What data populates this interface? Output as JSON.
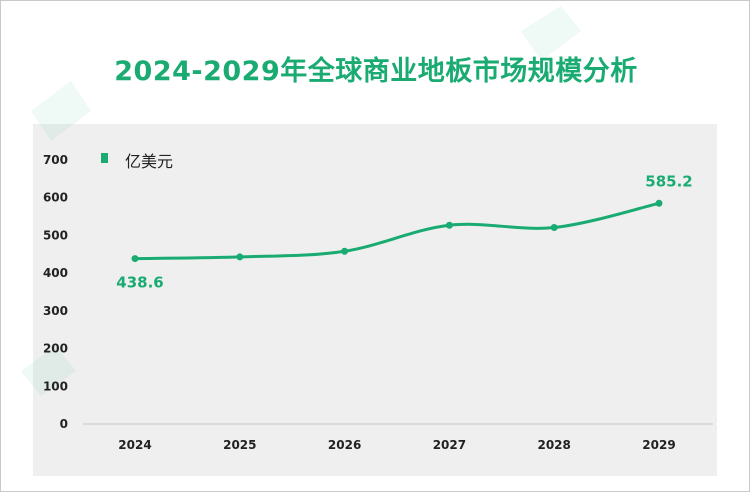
{
  "chart_data": {
    "type": "line",
    "title": "2024-2029年全球商业地板市场规模分析",
    "legend": "亿美元",
    "legend_position": "top-left",
    "categories": [
      "2024",
      "2025",
      "2026",
      "2027",
      "2028",
      "2029"
    ],
    "series": [
      {
        "name": "亿美元",
        "values": [
          438.6,
          443,
          458,
          527,
          521,
          585.2
        ]
      }
    ],
    "data_labels": {
      "0": "438.6",
      "5": "585.2"
    },
    "yticks": [
      "0",
      "100",
      "200",
      "300",
      "400",
      "500",
      "600",
      "700"
    ],
    "ylim": [
      0,
      700
    ],
    "xlabel": "",
    "ylabel": "",
    "grid": false,
    "line_color": "#1aab72"
  }
}
